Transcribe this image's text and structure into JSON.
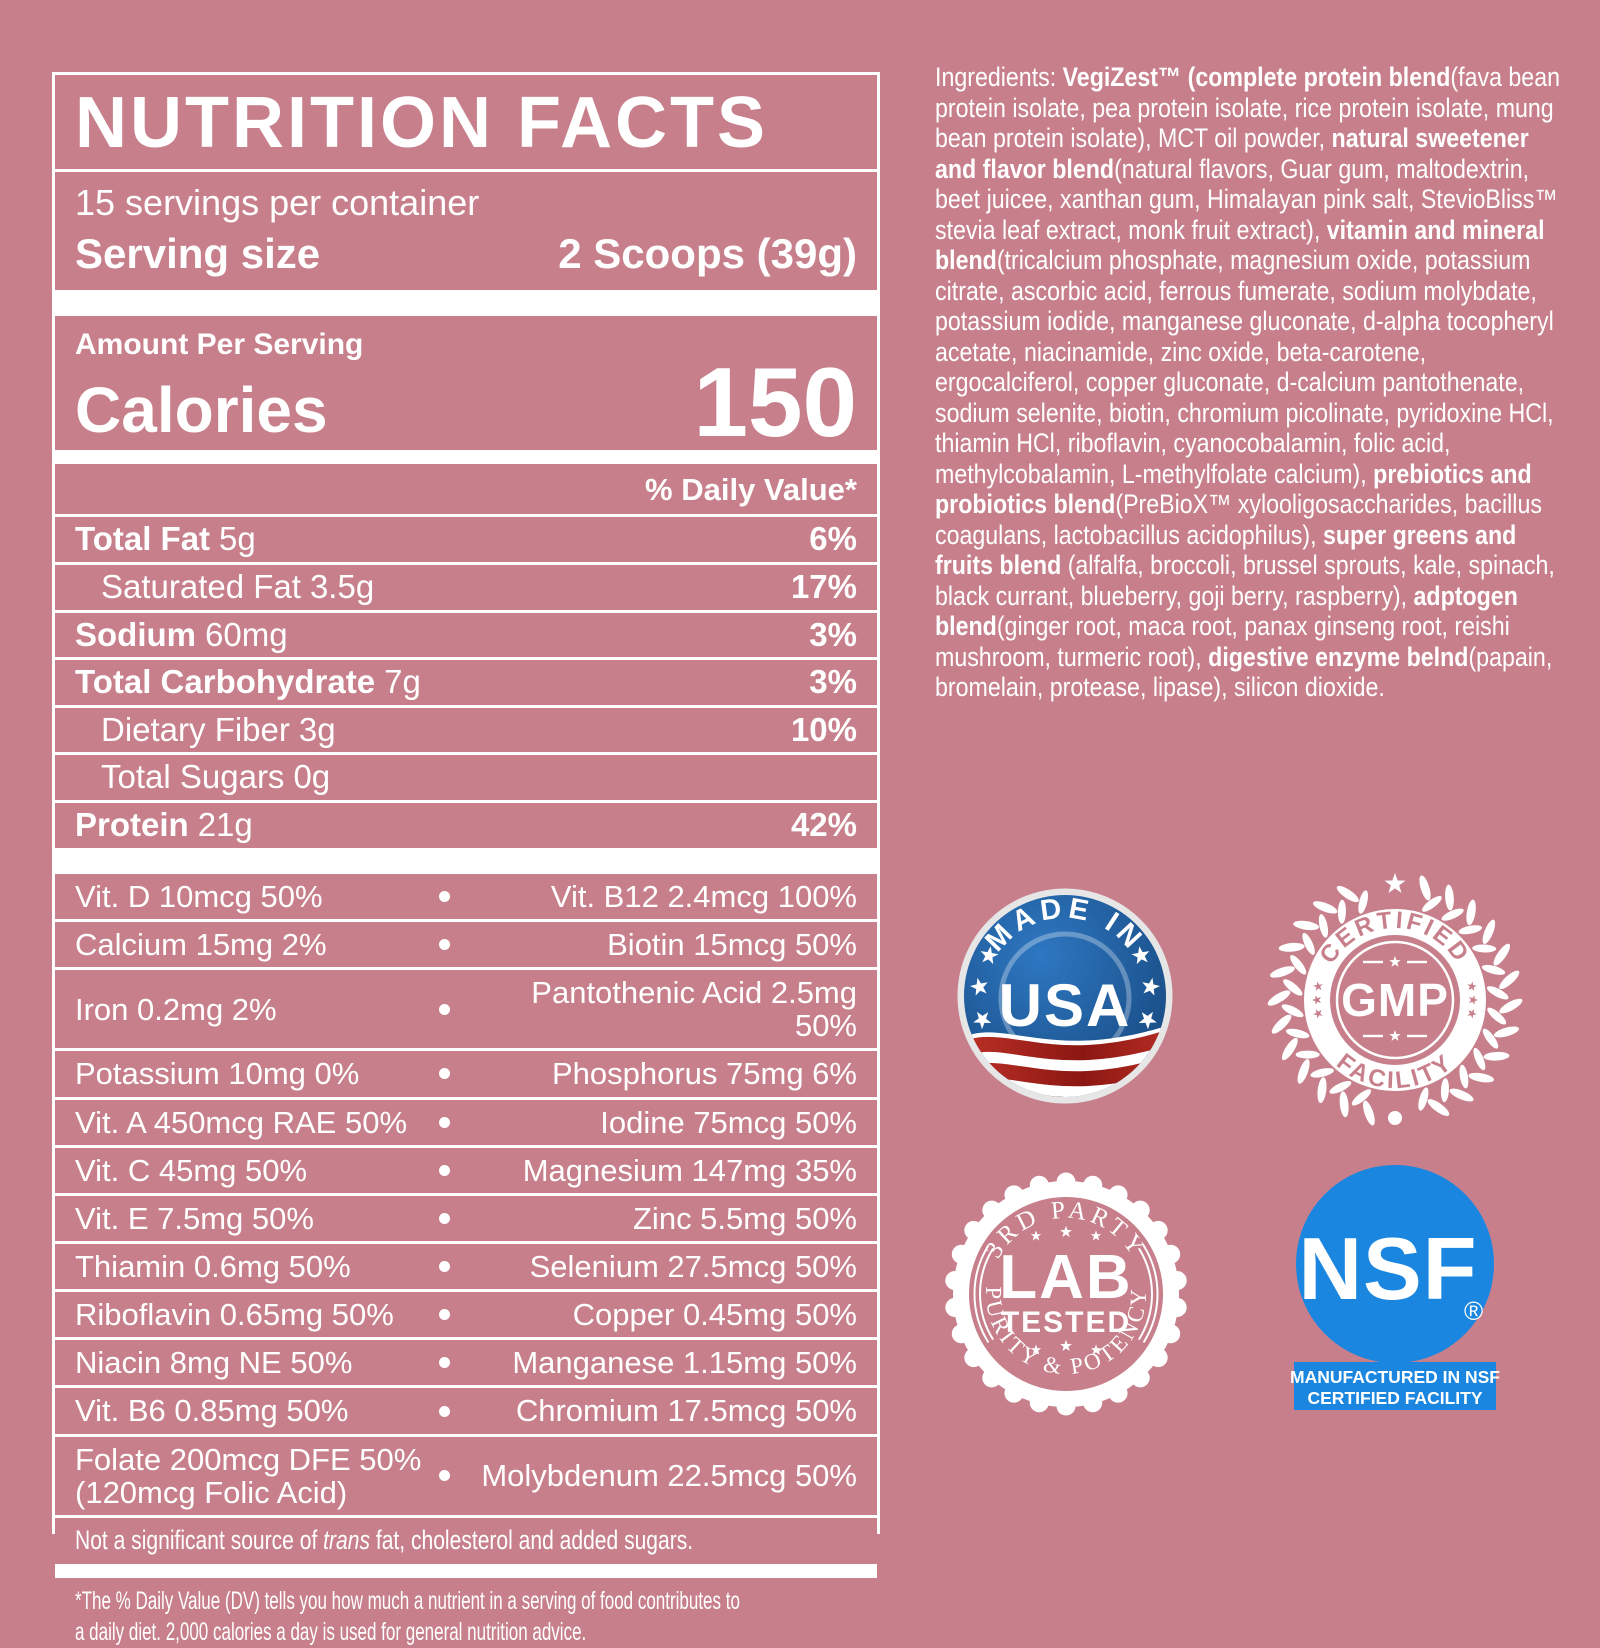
{
  "colors": {
    "background": "#c7808b",
    "text": "#ffffff",
    "nsf_blue": "#1b86e0",
    "usa_blue": "#2e78c2",
    "usa_blue_dark": "#16467c",
    "usa_rim": "#e6e6e6",
    "stripe_red": "#bf3329",
    "stripe_red_dark": "#8c1712"
  },
  "panel": {
    "title": "NUTRITION FACTS",
    "servings_per_container": "15 servings per container",
    "serving_size_label": "Serving size",
    "serving_size_value": "2 Scoops (39g)",
    "amount_per_serving": "Amount Per Serving",
    "calories_label": "Calories",
    "calories_value": "150",
    "daily_value_header": "% Daily Value*",
    "macro_rows": [
      {
        "name": "Total Fat",
        "amount": "5g",
        "dv": "6%"
      },
      {
        "name": "Saturated Fat",
        "amount": "3.5g",
        "dv": "17%"
      },
      {
        "name": "Sodium",
        "amount": "60mg",
        "dv": "3%"
      },
      {
        "name": "Total Carbohydrate",
        "amount": "7g",
        "dv": "3%"
      },
      {
        "name": "Dietary Fiber",
        "amount": "3g",
        "dv": "10%"
      },
      {
        "name": "Total Sugars",
        "amount": "0g",
        "dv": ""
      },
      {
        "name": "Protein",
        "amount": "21g",
        "dv": "42%"
      }
    ],
    "micro_rows": [
      {
        "left": "Vit. D 10mcg 50%",
        "right": "Vit. B12 2.4mcg 100%"
      },
      {
        "left": "Calcium 15mg 2%",
        "right": "Biotin 15mcg 50%"
      },
      {
        "left": "Iron 0.2mg 2%",
        "right": "Pantothenic Acid 2.5mg 50%"
      },
      {
        "left": "Potassium 10mg 0%",
        "right": "Phosphorus 75mg 6%"
      },
      {
        "left": "Vit. A 450mcg RAE 50%",
        "right": "Iodine 75mcg 50%"
      },
      {
        "left": "Vit. C 45mg 50%",
        "right": "Magnesium 147mg 35%"
      },
      {
        "left": "Vit. E 7.5mg 50%",
        "right": "Zinc 5.5mg 50%"
      },
      {
        "left": "Thiamin 0.6mg 50%",
        "right": "Selenium 27.5mcg 50%"
      },
      {
        "left": "Riboflavin 0.65mg 50%",
        "right": "Copper 0.45mg 50%"
      },
      {
        "left": "Niacin 8mg NE 50%",
        "right": "Manganese 1.15mg 50%"
      },
      {
        "left": "Vit. B6 0.85mg 50%",
        "right": "Chromium 17.5mcg 50%"
      },
      {
        "left": "Folate 200mcg DFE 50% (120mcg Folic Acid)",
        "right": "Molybdenum 22.5mcg 50%"
      }
    ],
    "trans_note": [
      "Not a significant source of ",
      "trans",
      " fat, cholesterol and added sugars."
    ],
    "footnote_line1": "*The % Daily Value (DV) tells you how much a nutrient in a serving of food contributes to",
    "footnote_line2": "a daily diet. 2,000 calories a day is used for general nutrition advice."
  },
  "ingredients": {
    "segments": [
      {
        "t": "Ingredients: ",
        "b": false
      },
      {
        "t": "VegiZest™ (complete protein blend",
        "b": true
      },
      {
        "t": "(fava bean protein isolate, pea protein isolate, rice protein isolate, mung bean protein isolate), MCT oil powder, ",
        "b": false
      },
      {
        "t": "natural sweetener and flavor blend",
        "b": true
      },
      {
        "t": "(natural flavors, Guar gum, maltodextrin, beet juicee, xanthan gum, Himalayan pink salt, StevioBliss™ stevia leaf extract, monk fruit extract), ",
        "b": false
      },
      {
        "t": "vitamin and mineral blend",
        "b": true
      },
      {
        "t": "(tricalcium phosphate, magnesium oxide, potassium citrate, ascorbic acid, ferrous fumerate, sodium molybdate, potassium iodide, manganese gluconate, d-alpha tocopheryl acetate, niacinamide, zinc oxide, beta-carotene, ergocalciferol, copper gluconate, d-calcium pantothenate, sodium selenite, biotin, chromium picolinate, pyridoxine HCl, thiamin HCl, riboflavin, cyanocobalamin, folic acid, methylcobalamin, L-methylfolate calcium), ",
        "b": false
      },
      {
        "t": "prebiotics and probiotics blend",
        "b": true
      },
      {
        "t": "(PreBioX™ xylooligosaccharides, bacillus coagulans, lactobacillus acidophilus), ",
        "b": false
      },
      {
        "t": "super greens and fruits blend",
        "b": true
      },
      {
        "t": " (alfalfa, broccoli, brussel sprouts, kale, spinach, black currant, blueberry, goji berry, raspberry), ",
        "b": false
      },
      {
        "t": "adptogen blend",
        "b": true
      },
      {
        "t": "(ginger root, maca root, panax ginseng root, reishi mushroom, turmeric root), ",
        "b": false
      },
      {
        "t": "digestive enzyme belnd",
        "b": true
      },
      {
        "t": "(papain, bromelain, protease, lipase), silicon dioxide.",
        "b": false
      }
    ]
  },
  "badges": {
    "made_in_usa": {
      "arc": "MADE IN",
      "center": "USA"
    },
    "gmp": {
      "top": "CERTIFIED",
      "center": "GMP",
      "bottom": "FACILITY"
    },
    "lab": {
      "top": "3RD PARTY",
      "big": "LAB",
      "sub": "TESTED",
      "bottom": "PURITY & POTENCY"
    },
    "nsf": {
      "name": "NSF",
      "reg": "®",
      "banner_line1": "MANUFACTURED IN NSF",
      "banner_line2": "CERTIFIED FACILITY"
    }
  }
}
